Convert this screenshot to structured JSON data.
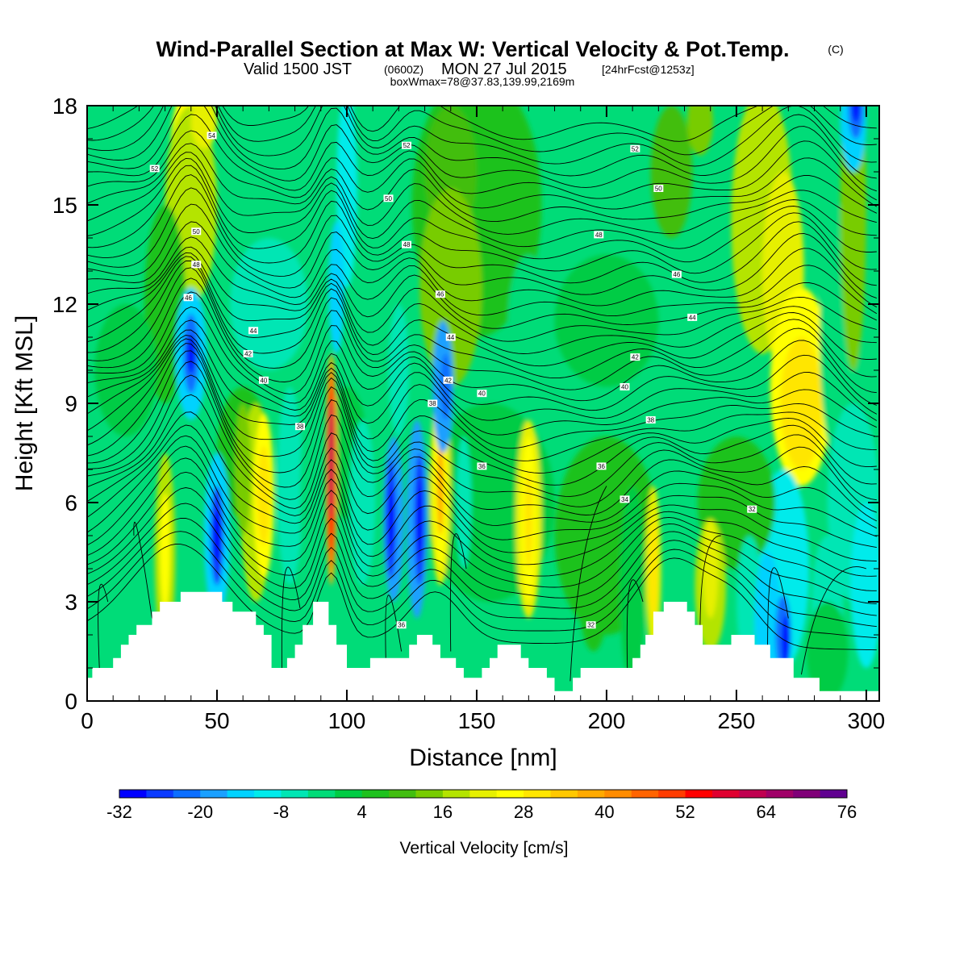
{
  "title": {
    "main": "Wind-Parallel Section at Max W: Vertical Velocity & Pot.Temp.",
    "mark": "(C)",
    "valid_a": "Valid 1500 JST",
    "valid_b": "(0600Z)",
    "valid_c": "MON 27 Jul 2015",
    "valid_d": "[24hrFcst@1253z]",
    "box": "boxWmax=78@37.83,139.99,2169m"
  },
  "chart_data": {
    "type": "heatmap",
    "xlabel": "Distance [nm]",
    "ylabel": "Height [Kft MSL]",
    "xlim": [
      0,
      305
    ],
    "ylim": [
      0,
      18
    ],
    "x_ticks": [
      "0",
      "50",
      "100",
      "150",
      "200",
      "250",
      "300"
    ],
    "y_ticks": [
      "0",
      "3",
      "6",
      "9",
      "12",
      "15",
      "18"
    ],
    "grid": false,
    "colorbar": {
      "title": "Vertical Velocity [cm/s]",
      "min": -32,
      "step": 4,
      "labels": [
        "-32",
        "-20",
        "-8",
        "4",
        "16",
        "28",
        "40",
        "52",
        "64",
        "76"
      ],
      "colors": [
        "#0000ff",
        "#0a3aff",
        "#0b6eff",
        "#1aa0ff",
        "#00d2ff",
        "#00ebeb",
        "#00e6b4",
        "#00dc78",
        "#00cc44",
        "#1ec21e",
        "#42be10",
        "#78cc00",
        "#b4e400",
        "#e6f000",
        "#ffff00",
        "#ffe600",
        "#ffc800",
        "#ffaa00",
        "#ff8c00",
        "#ff6400",
        "#ff3c00",
        "#ff0000",
        "#e00030",
        "#c00050",
        "#a00068",
        "#800078",
        "#600090"
      ]
    },
    "terrain_kft": [
      [
        0,
        0.7
      ],
      [
        2,
        0.7
      ],
      [
        2,
        1.0
      ],
      [
        10,
        1.0
      ],
      [
        10,
        1.3
      ],
      [
        13,
        1.3
      ],
      [
        13,
        1.7
      ],
      [
        16,
        1.7
      ],
      [
        16,
        2.0
      ],
      [
        19,
        2.0
      ],
      [
        19,
        2.3
      ],
      [
        25,
        2.3
      ],
      [
        25,
        2.7
      ],
      [
        28,
        2.7
      ],
      [
        28,
        3.0
      ],
      [
        36,
        3.0
      ],
      [
        36,
        3.3
      ],
      [
        52,
        3.3
      ],
      [
        52,
        3.0
      ],
      [
        56,
        3.0
      ],
      [
        56,
        2.7
      ],
      [
        65,
        2.7
      ],
      [
        65,
        2.3
      ],
      [
        68,
        2.3
      ],
      [
        68,
        2.0
      ],
      [
        71,
        2.0
      ],
      [
        71,
        1.7
      ],
      [
        71,
        1.0
      ],
      [
        77,
        1.0
      ],
      [
        77,
        1.3
      ],
      [
        80,
        1.3
      ],
      [
        80,
        1.7
      ],
      [
        83,
        1.7
      ],
      [
        83,
        2.3
      ],
      [
        87,
        2.3
      ],
      [
        87,
        3.0
      ],
      [
        93,
        3.0
      ],
      [
        93,
        2.3
      ],
      [
        96,
        2.3
      ],
      [
        96,
        1.7
      ],
      [
        100,
        1.7
      ],
      [
        100,
        1.0
      ],
      [
        109,
        1.0
      ],
      [
        109,
        1.3
      ],
      [
        124,
        1.3
      ],
      [
        124,
        1.7
      ],
      [
        127,
        1.7
      ],
      [
        127,
        2.0
      ],
      [
        133,
        2.0
      ],
      [
        133,
        1.7
      ],
      [
        136,
        1.7
      ],
      [
        136,
        1.3
      ],
      [
        142,
        1.3
      ],
      [
        142,
        1.0
      ],
      [
        145,
        1.0
      ],
      [
        145,
        0.7
      ],
      [
        152,
        0.7
      ],
      [
        152,
        1.0
      ],
      [
        155,
        1.0
      ],
      [
        155,
        1.3
      ],
      [
        158,
        1.3
      ],
      [
        158,
        1.7
      ],
      [
        167,
        1.7
      ],
      [
        167,
        1.3
      ],
      [
        170,
        1.3
      ],
      [
        170,
        1.0
      ],
      [
        177,
        1.0
      ],
      [
        177,
        0.7
      ],
      [
        180,
        0.7
      ],
      [
        180,
        0.3
      ],
      [
        187,
        0.3
      ],
      [
        187,
        0.7
      ],
      [
        190,
        0.7
      ],
      [
        190,
        1.0
      ],
      [
        210,
        1.0
      ],
      [
        210,
        1.3
      ],
      [
        213,
        1.3
      ],
      [
        213,
        1.7
      ],
      [
        215,
        1.7
      ],
      [
        215,
        2.0
      ],
      [
        218,
        2.0
      ],
      [
        218,
        2.7
      ],
      [
        222,
        2.7
      ],
      [
        222,
        3.0
      ],
      [
        231,
        3.0
      ],
      [
        231,
        2.7
      ],
      [
        234,
        2.7
      ],
      [
        234,
        2.3
      ],
      [
        237,
        2.3
      ],
      [
        237,
        1.7
      ],
      [
        248,
        1.7
      ],
      [
        248,
        2.0
      ],
      [
        257,
        2.0
      ],
      [
        257,
        1.7
      ],
      [
        263,
        1.7
      ],
      [
        263,
        1.3
      ],
      [
        272,
        1.3
      ],
      [
        272,
        0.7
      ],
      [
        282,
        0.7
      ],
      [
        282,
        0.3
      ],
      [
        305,
        0.3
      ]
    ],
    "theta_labels": [
      {
        "v": "54",
        "x": 48,
        "y": 17.1
      },
      {
        "v": "52",
        "x": 26,
        "y": 16.1
      },
      {
        "v": "52",
        "x": 123,
        "y": 16.8
      },
      {
        "v": "52",
        "x": 211,
        "y": 16.7
      },
      {
        "v": "50",
        "x": 42,
        "y": 14.2
      },
      {
        "v": "50",
        "x": 116,
        "y": 15.2
      },
      {
        "v": "50",
        "x": 220,
        "y": 15.5
      },
      {
        "v": "48",
        "x": 42,
        "y": 13.2
      },
      {
        "v": "48",
        "x": 123,
        "y": 13.8
      },
      {
        "v": "48",
        "x": 197,
        "y": 14.1
      },
      {
        "v": "46",
        "x": 39,
        "y": 12.2
      },
      {
        "v": "46",
        "x": 136,
        "y": 12.3
      },
      {
        "v": "46",
        "x": 227,
        "y": 12.9
      },
      {
        "v": "44",
        "x": 64,
        "y": 11.2
      },
      {
        "v": "44",
        "x": 140,
        "y": 11.0
      },
      {
        "v": "44",
        "x": 233,
        "y": 11.6
      },
      {
        "v": "42",
        "x": 62,
        "y": 10.5
      },
      {
        "v": "42",
        "x": 139,
        "y": 9.7
      },
      {
        "v": "42",
        "x": 211,
        "y": 10.4
      },
      {
        "v": "40",
        "x": 68,
        "y": 9.7
      },
      {
        "v": "40",
        "x": 152,
        "y": 9.3
      },
      {
        "v": "40",
        "x": 207,
        "y": 9.5
      },
      {
        "v": "38",
        "x": 82,
        "y": 8.3
      },
      {
        "v": "38",
        "x": 133,
        "y": 9.0
      },
      {
        "v": "38",
        "x": 217,
        "y": 8.5
      },
      {
        "v": "36",
        "x": 152,
        "y": 7.1
      },
      {
        "v": "36",
        "x": 198,
        "y": 7.1
      },
      {
        "v": "34",
        "x": 207,
        "y": 6.1
      },
      {
        "v": "32",
        "x": 256,
        "y": 5.8
      },
      {
        "v": "36",
        "x": 121,
        "y": 2.3
      },
      {
        "v": "32",
        "x": 194,
        "y": 2.3
      }
    ]
  }
}
